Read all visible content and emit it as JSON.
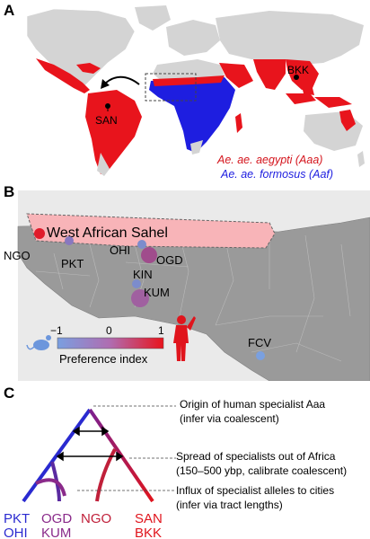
{
  "panels": {
    "a": {
      "letter": "A",
      "site_bkk": "BKK",
      "site_san": "SAN",
      "legend_aaa": "Ae. ae. aegypti (Aaa)",
      "legend_aaf": "Ae. ae. formosus (Aaf)",
      "color_aaa": "#e8141c",
      "color_aaf": "#1e1ee0"
    },
    "b": {
      "letter": "B",
      "region_label": "West African Sahel",
      "sites": [
        "NGO",
        "PKT",
        "OHI",
        "OGD",
        "KIN",
        "KUM",
        "FCV"
      ],
      "scale_title": "Preference index",
      "scale_ticks": [
        "−1",
        "0",
        "1"
      ],
      "scale_low_color": "#7a9fe0",
      "scale_high_color": "#e8141c"
    },
    "c": {
      "letter": "C",
      "annotations": [
        {
          "line1": "Origin of human specialist Aaa",
          "line2": "(infer via coalescent)"
        },
        {
          "line1": "Spread of specialists out of Africa",
          "line2": "(150–500 ybp, calibrate coalescent)"
        },
        {
          "line1": "Influx of specialist alleles to cities",
          "line2": "(infer via tract lengths)"
        }
      ],
      "tips": [
        {
          "top": "PKT",
          "bottom": "OHI",
          "color": "#2a2ad0"
        },
        {
          "top": "OGD",
          "bottom": "KUM",
          "color": "#8a2a8a"
        },
        {
          "top": "NGO",
          "bottom": "",
          "color": "#c0203a"
        },
        {
          "top": "SAN",
          "bottom": "BKK",
          "color": "#e0141c"
        }
      ]
    }
  }
}
